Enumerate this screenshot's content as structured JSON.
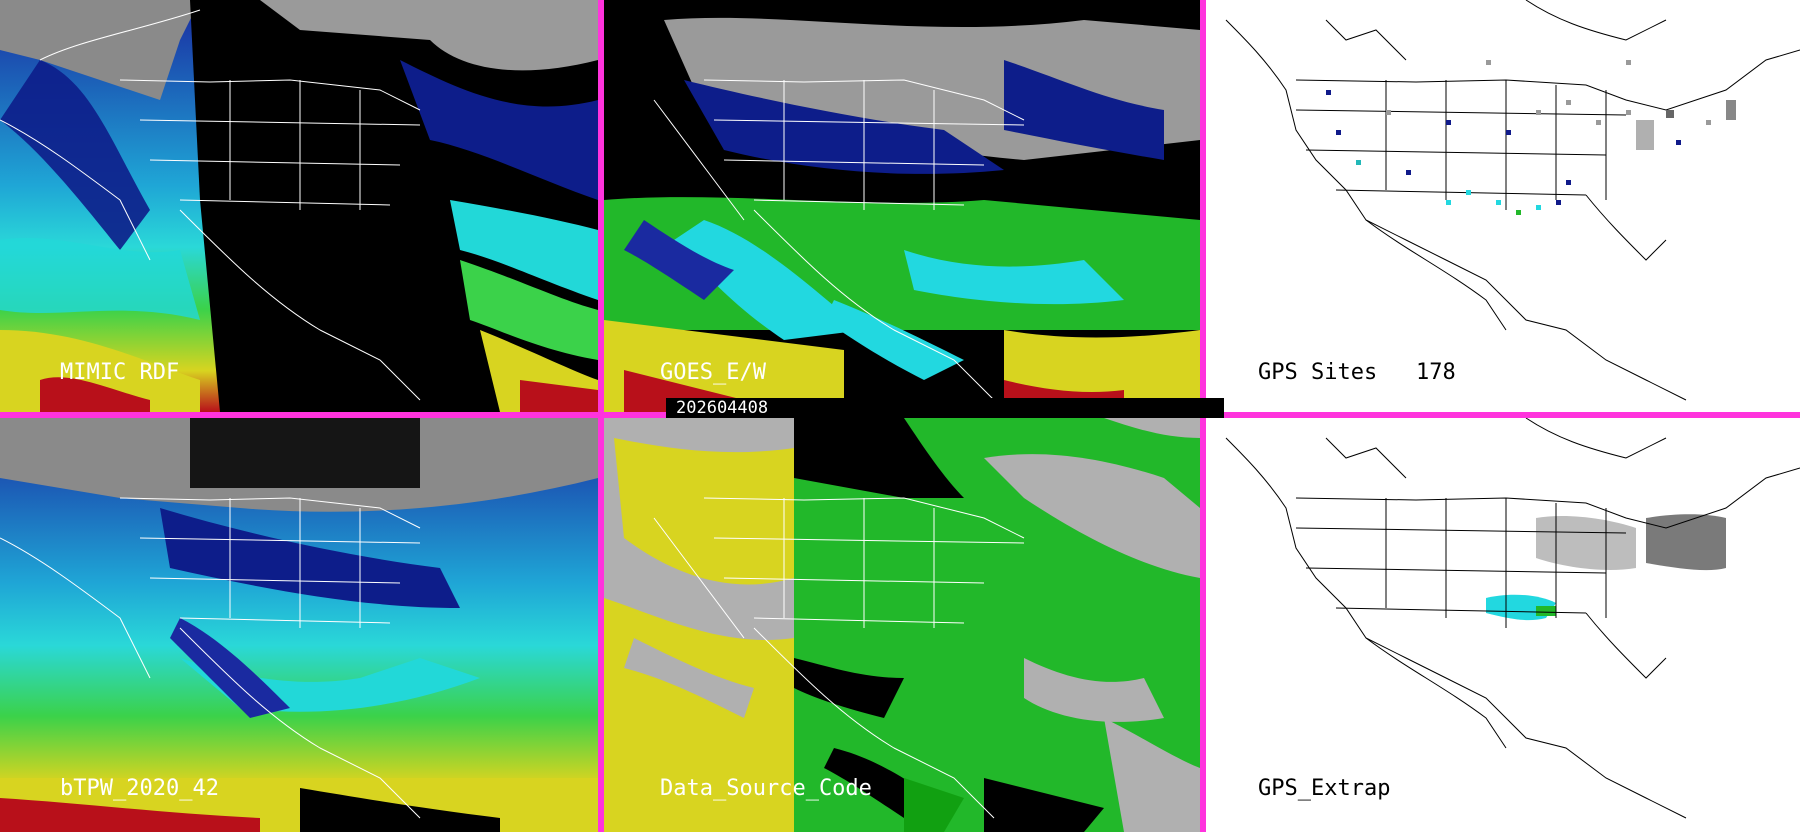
{
  "panels": [
    {
      "id": "mimic_rdf",
      "label": "MIMIC RDF",
      "theme": "satellite-night"
    },
    {
      "id": "goes_ew",
      "label": "GOES_E/W",
      "theme": "satellite-goes"
    },
    {
      "id": "gps_sites",
      "label": "GPS Sites",
      "count": "178",
      "theme": "white-map"
    },
    {
      "id": "btpw",
      "label": "bTPW_2020_42",
      "theme": "satellite-full"
    },
    {
      "id": "data_source",
      "label": "Data_Source_Code",
      "theme": "source-code"
    },
    {
      "id": "gps_extrap",
      "label": "GPS_Extrap",
      "theme": "white-map"
    }
  ],
  "timestamp": "202604408",
  "colors": {
    "divider": "#ff33dd",
    "deep_blue": "#101a8a",
    "cyan": "#22d8e0",
    "green": "#22b82a",
    "yellow": "#d8d420",
    "red": "#b8101a",
    "gray": "#b0b0b0"
  }
}
